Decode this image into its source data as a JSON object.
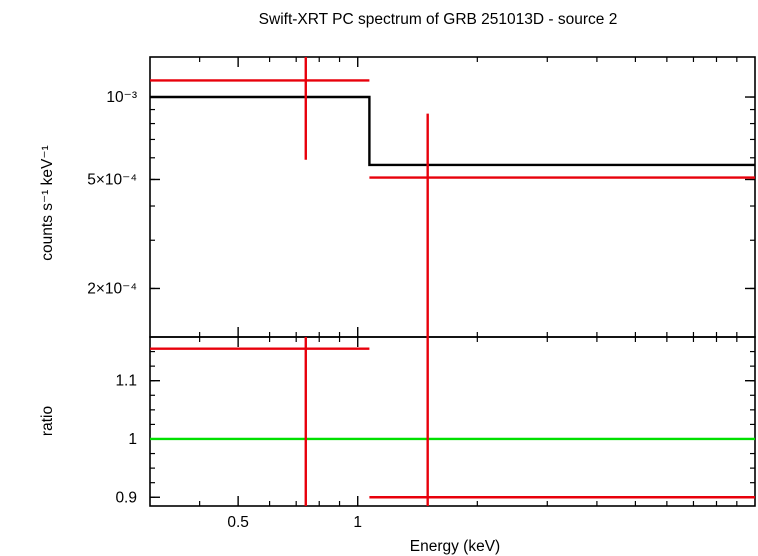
{
  "chart_data": {
    "title": "Swift-XRT PC spectrum of GRB 251013D - source 2",
    "x_axis": {
      "label": "Energy (keV)",
      "scale": "log",
      "range_kev": [
        0.3,
        10
      ],
      "ticks": [
        {
          "value": 0.5,
          "label": "0.5"
        },
        {
          "value": 1,
          "label": "1"
        }
      ]
    },
    "top_panel": {
      "type": "step",
      "ylabel": "counts s⁻¹ keV⁻¹",
      "y_scale": "log",
      "y_range": [
        0.000133,
        0.0014
      ],
      "y_ticks": [
        {
          "value": 0.001,
          "label": "10⁻³"
        },
        {
          "value": 0.0005,
          "label": "5×10⁻⁴"
        },
        {
          "value": 0.0002,
          "label": "2×10⁻⁴"
        }
      ],
      "data": [
        {
          "x": 0.74,
          "xlo": 0.3,
          "xhi": 1.07,
          "y": 0.00115,
          "ylo": 0.00059,
          "yhi": 0.0014
        },
        {
          "x": 1.5,
          "xlo": 1.07,
          "xhi": 10,
          "y": 0.000508,
          "ylo": 0.000133,
          "yhi": 0.00087
        }
      ],
      "model": [
        {
          "xlo": 0.3,
          "xhi": 1.07,
          "y": 0.001
        },
        {
          "xlo": 1.07,
          "xhi": 10,
          "y": 0.000565
        }
      ],
      "data_color": "#e8000b",
      "model_color": "#000000"
    },
    "bottom_panel": {
      "type": "ratio",
      "ylabel": "ratio",
      "y_scale": "linear",
      "y_range": [
        0.885,
        1.175
      ],
      "y_ticks": [
        {
          "value": 0.9,
          "label": "0.9"
        },
        {
          "value": 1,
          "label": "1"
        },
        {
          "value": 1.1,
          "label": "1.1"
        }
      ],
      "reference": 1,
      "reference_color": "#00e000",
      "data": [
        {
          "x": 0.74,
          "xlo": 0.3,
          "xhi": 1.07,
          "y": 1.155,
          "ylo": 0.885,
          "yhi": 1.175
        },
        {
          "x": 1.5,
          "xlo": 1.07,
          "xhi": 10,
          "y": 0.9,
          "ylo": 0.885,
          "yhi": 1.175
        }
      ]
    }
  }
}
